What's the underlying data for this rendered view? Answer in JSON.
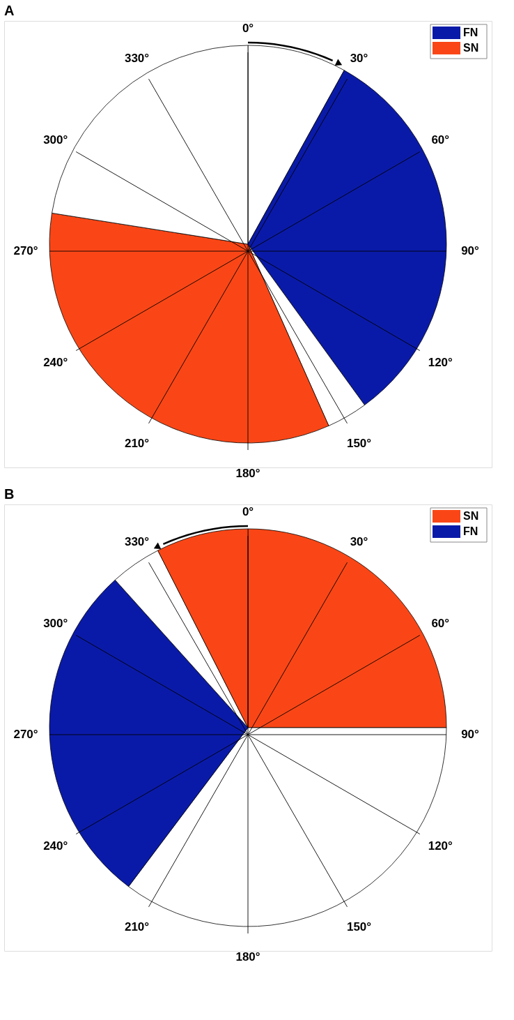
{
  "chart_data": [
    {
      "type": "pie",
      "title": "A",
      "categories": [
        null,
        "FN",
        null,
        "SN",
        null
      ],
      "values": [
        8.06,
        31.94,
        3.33,
        34.17,
        22.5
      ],
      "colors": [
        "#ffffff",
        "#0a1aa8",
        "#ffffff",
        "#fa4616",
        "#ffffff"
      ],
      "legend": "top right",
      "grid": true,
      "annotations": [
        "0°",
        "30°",
        "60°",
        "90°",
        "120°",
        "150°",
        "180°",
        "210°",
        "240°",
        "270°",
        "300°",
        "330°"
      ]
    },
    {
      "type": "pie",
      "title": "B",
      "categories": [
        "SN",
        null,
        "FN",
        null,
        null
      ],
      "values": [
        25,
        35.27,
        28.06,
        4.17,
        7.5
      ],
      "colors": [
        "#fa4616",
        "#ffffff",
        "#0a1aa8",
        "#ffffff",
        "#fa4616"
      ],
      "legend": "top right",
      "grid": true,
      "annotations": [
        "0°",
        "30°",
        "60°",
        "90°",
        "120°",
        "150°",
        "180°",
        "210°",
        "240°",
        "270°",
        "300°",
        "330°"
      ]
    }
  ]
}
